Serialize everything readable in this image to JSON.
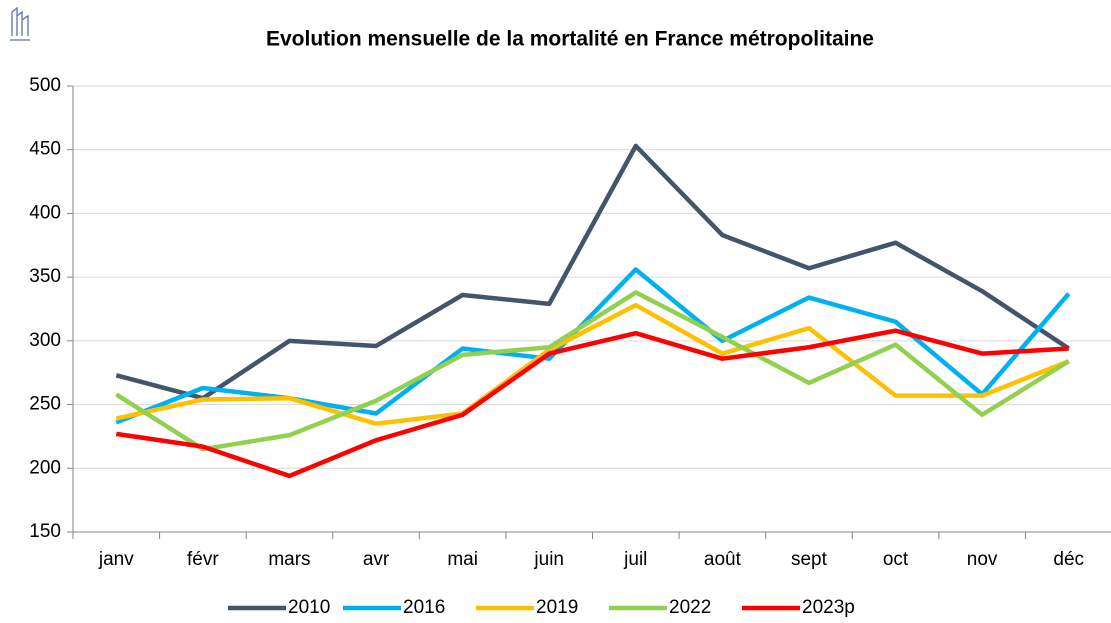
{
  "chart_data": {
    "type": "line",
    "title": "Evolution mensuelle de la mortalité en France métropolitaine",
    "categories": [
      "janv",
      "févr",
      "mars",
      "avr",
      "mai",
      "juin",
      "juil",
      "août",
      "sept",
      "oct",
      "nov",
      "déc"
    ],
    "series": [
      {
        "name": "2010",
        "color": "#44546a",
        "values": [
          273,
          255,
          300,
          296,
          336,
          329,
          453,
          383,
          357,
          377,
          339,
          294
        ]
      },
      {
        "name": "2016",
        "color": "#00b0f0",
        "values": [
          236,
          263,
          255,
          243,
          294,
          286,
          356,
          300,
          334,
          315,
          258,
          337
        ]
      },
      {
        "name": "2019",
        "color": "#ffc000",
        "values": [
          239,
          254,
          255,
          235,
          243,
          293,
          328,
          290,
          310,
          257,
          257,
          284
        ]
      },
      {
        "name": "2022",
        "color": "#92d050",
        "values": [
          258,
          215,
          226,
          253,
          289,
          295,
          338,
          303,
          267,
          297,
          242,
          284
        ]
      },
      {
        "name": "2023p",
        "color": "#ff0000",
        "values": [
          227,
          217,
          194,
          222,
          242,
          290,
          306,
          286,
          295,
          308,
          290,
          294
        ]
      }
    ],
    "ylim": [
      150,
      500
    ],
    "yticks": [
      150,
      200,
      250,
      300,
      350,
      400,
      450,
      500
    ],
    "grid": true,
    "legend": "bottom"
  }
}
